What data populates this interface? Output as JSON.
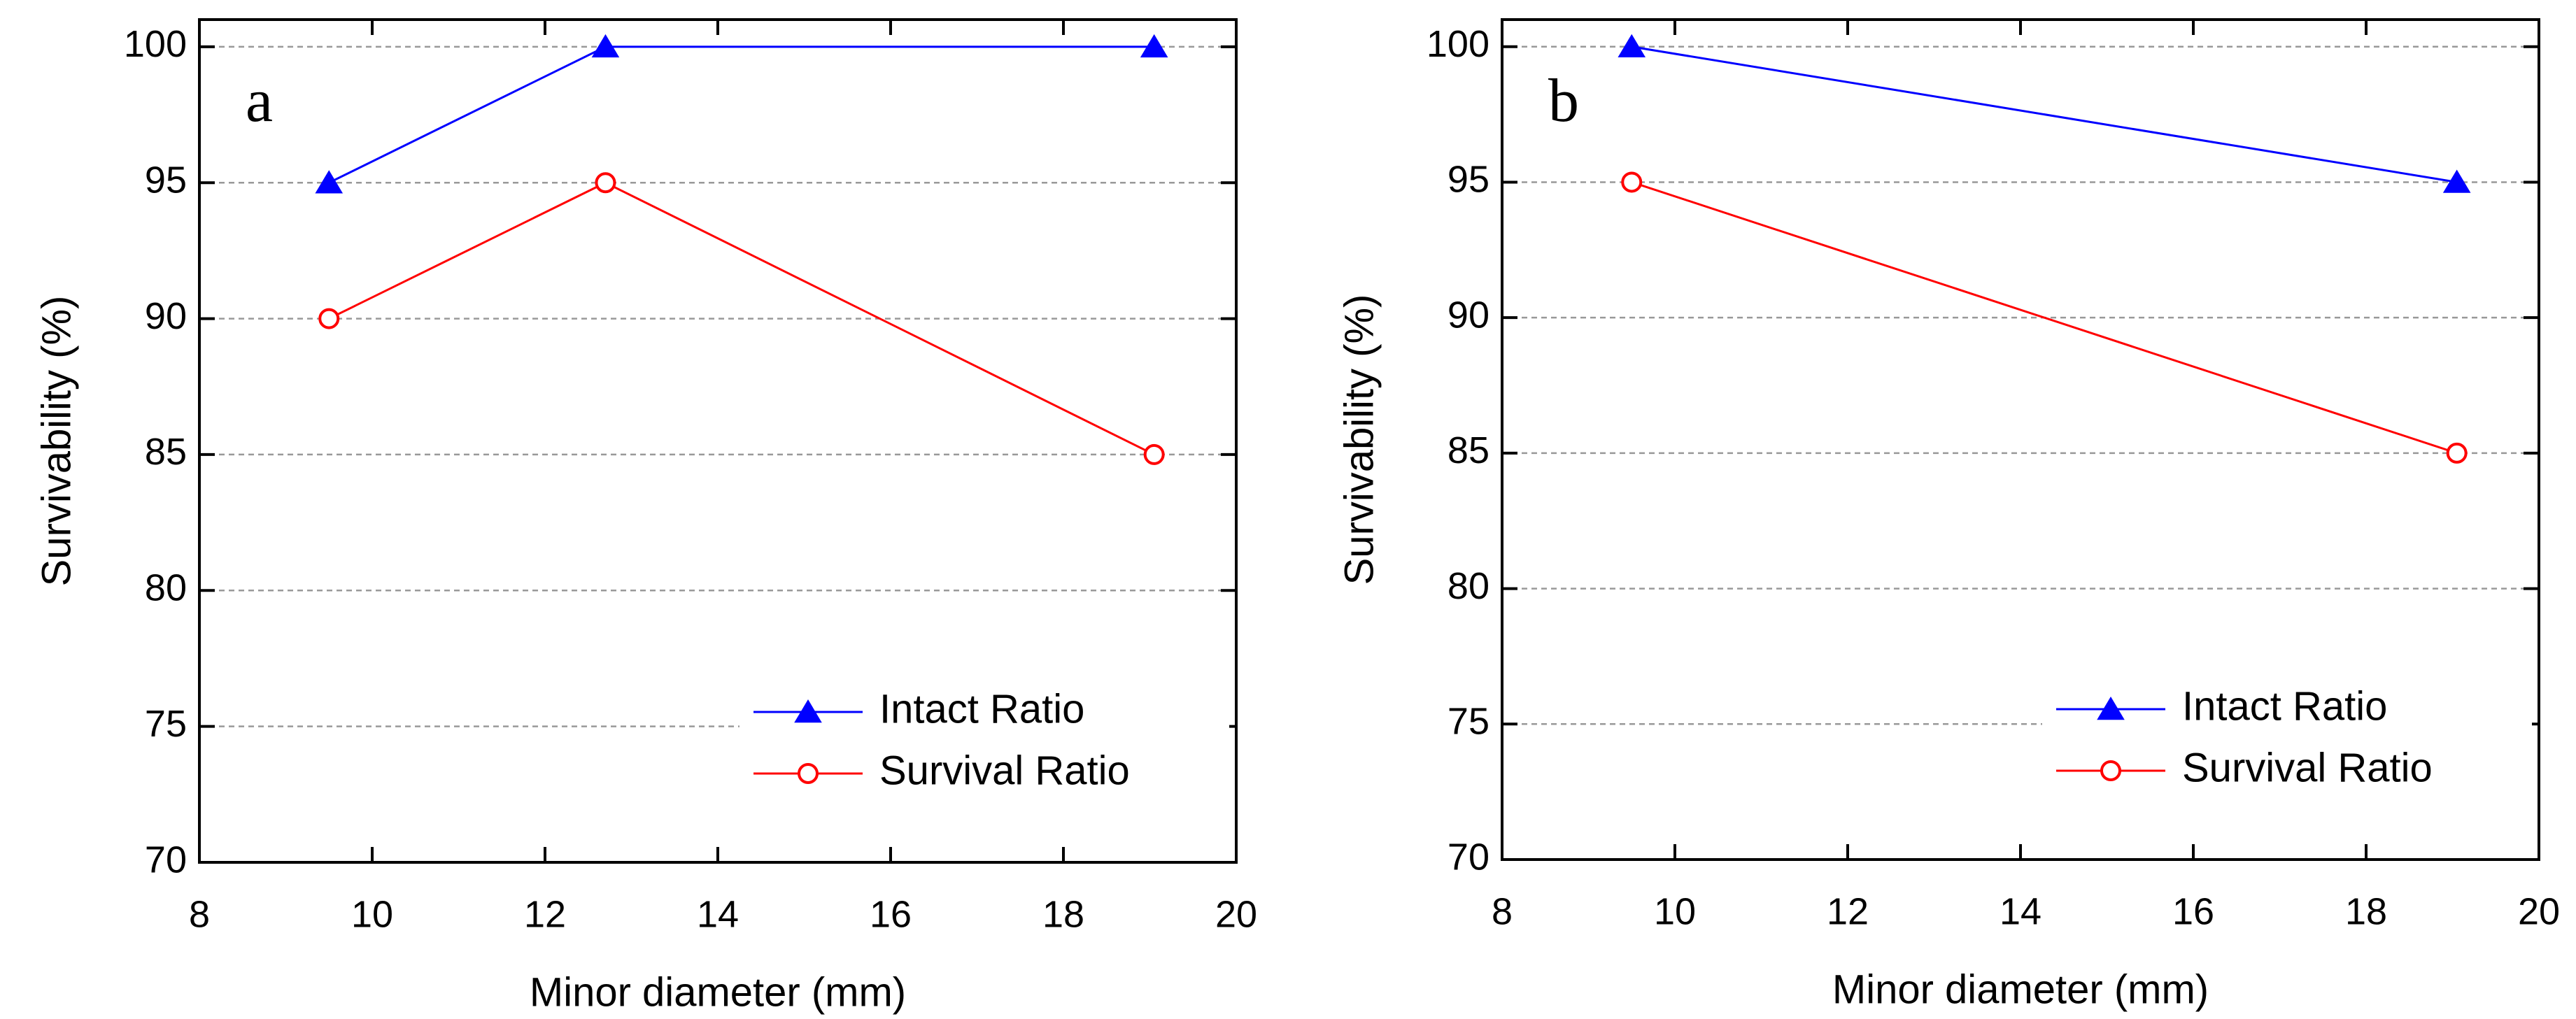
{
  "chart_data": [
    {
      "type": "line",
      "annotation": "a",
      "xlabel": "Minor diameter (mm)",
      "ylabel": "Survivability (%)",
      "xlim": [
        8,
        20
      ],
      "xticks": [
        8,
        10,
        12,
        14,
        16,
        18,
        20
      ],
      "ylim": [
        70,
        101
      ],
      "yticks": [
        70,
        75,
        80,
        85,
        90,
        95,
        100
      ],
      "grid": true,
      "legend": "lower right",
      "series": [
        {
          "name": "Intact Ratio",
          "color": "#0000ff",
          "marker": "triangle",
          "x": [
            9.5,
            12.7,
            19.05
          ],
          "values": [
            95,
            100,
            100
          ]
        },
        {
          "name": "Survival Ratio",
          "color": "#ff0000",
          "marker": "circle",
          "x": [
            9.5,
            12.7,
            19.05
          ],
          "values": [
            90,
            95,
            85
          ]
        }
      ]
    },
    {
      "type": "line",
      "annotation": "b",
      "xlabel": "Minor diameter (mm)",
      "ylabel": "Survivability (%)",
      "xlim": [
        8,
        20
      ],
      "xticks": [
        8,
        10,
        12,
        14,
        16,
        18,
        20
      ],
      "ylim": [
        70,
        101
      ],
      "yticks": [
        70,
        75,
        80,
        85,
        90,
        95,
        100
      ],
      "grid": true,
      "legend": "lower right",
      "series": [
        {
          "name": "Intact Ratio",
          "color": "#0000ff",
          "marker": "triangle",
          "x": [
            9.5,
            19.05
          ],
          "values": [
            100,
            95
          ]
        },
        {
          "name": "Survival Ratio",
          "color": "#ff0000",
          "marker": "circle",
          "x": [
            9.5,
            19.05
          ],
          "values": [
            95,
            85
          ]
        }
      ]
    }
  ]
}
